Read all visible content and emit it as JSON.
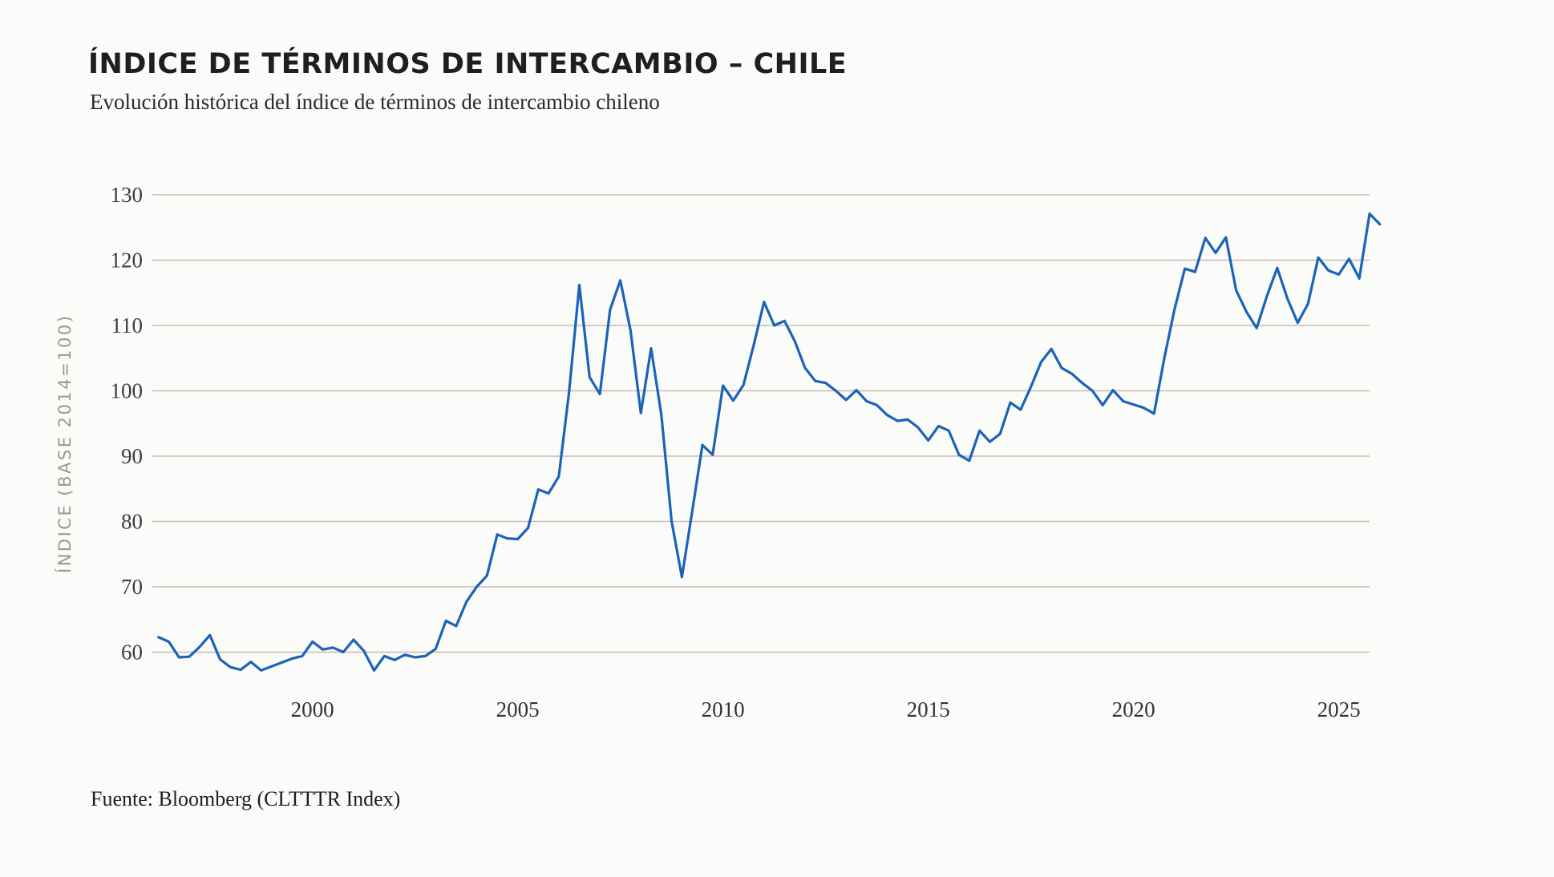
{
  "header": {
    "title": "ÍNDICE DE TÉRMINOS DE INTERCAMBIO – CHILE",
    "subtitle": "Evolución histórica del índice de términos de intercambio chileno"
  },
  "footer": {
    "source": "Fuente: Bloomberg (CLTTTR Index)"
  },
  "chart_data": {
    "type": "line",
    "title": "ÍNDICE DE TÉRMINOS DE INTERCAMBIO – CHILE",
    "subtitle": "Evolución histórica del índice de términos de intercambio chileno",
    "source": "Fuente: Bloomberg (CLTTTR Index)",
    "series_name": "CLTTTR Index",
    "ylabel": "ÍNDICE (BASE 2014=100)",
    "xlabel": "",
    "grid": true,
    "legend_position": "none",
    "x_start": 1996.25,
    "x_step": 0.25,
    "x_domain": [
      1996.1,
      2025.75
    ],
    "x_ticks": [
      2000,
      2005,
      2010,
      2015,
      2020,
      2025
    ],
    "y_ticks": [
      60,
      70,
      80,
      90,
      100,
      110,
      120,
      130
    ],
    "y_domain": [
      60,
      130
    ],
    "colors": {
      "line": "#1b63b8",
      "grid": "#c7bcb0",
      "tick_text": "#3d3d3d",
      "axis_label": "#a3968a",
      "title": "#1f1f1f",
      "background": "#fbfbf9"
    },
    "values": [
      62.3,
      61.6,
      59.2,
      59.3,
      60.8,
      62.6,
      58.9,
      57.7,
      57.3,
      58.5,
      57.2,
      57.8,
      58.4,
      59.0,
      59.4,
      61.6,
      60.4,
      60.7,
      60.0,
      61.9,
      60.2,
      57.2,
      59.4,
      58.8,
      59.6,
      59.2,
      59.4,
      60.5,
      64.8,
      64.0,
      67.7,
      70.0,
      71.7,
      78.0,
      77.4,
      77.3,
      79.0,
      84.9,
      84.3,
      86.9,
      99.8,
      116.2,
      102.1,
      99.5,
      112.4,
      116.9,
      109.2,
      96.6,
      106.5,
      96.3,
      80.0,
      71.5,
      81.5,
      91.7,
      90.2,
      100.8,
      98.5,
      100.9,
      107.0,
      113.6,
      110.0,
      110.7,
      107.6,
      103.5,
      101.5,
      101.2,
      100.0,
      98.6,
      100.1,
      98.4,
      97.8,
      96.3,
      95.4,
      95.6,
      94.4,
      92.4,
      94.6,
      93.9,
      90.2,
      89.3,
      93.9,
      92.2,
      93.4,
      98.2,
      97.1,
      100.6,
      104.4,
      106.4,
      103.5,
      102.6,
      101.2,
      100.0,
      97.8,
      100.1,
      98.4,
      97.9,
      97.4,
      96.5,
      105.0,
      112.5,
      118.7,
      118.2,
      123.4,
      121.1,
      123.5,
      115.4,
      112.1,
      109.6,
      114.5,
      118.8,
      114.1,
      110.4,
      113.3,
      120.4,
      118.4,
      117.8,
      120.2,
      117.2,
      127.1,
      125.5
    ]
  }
}
